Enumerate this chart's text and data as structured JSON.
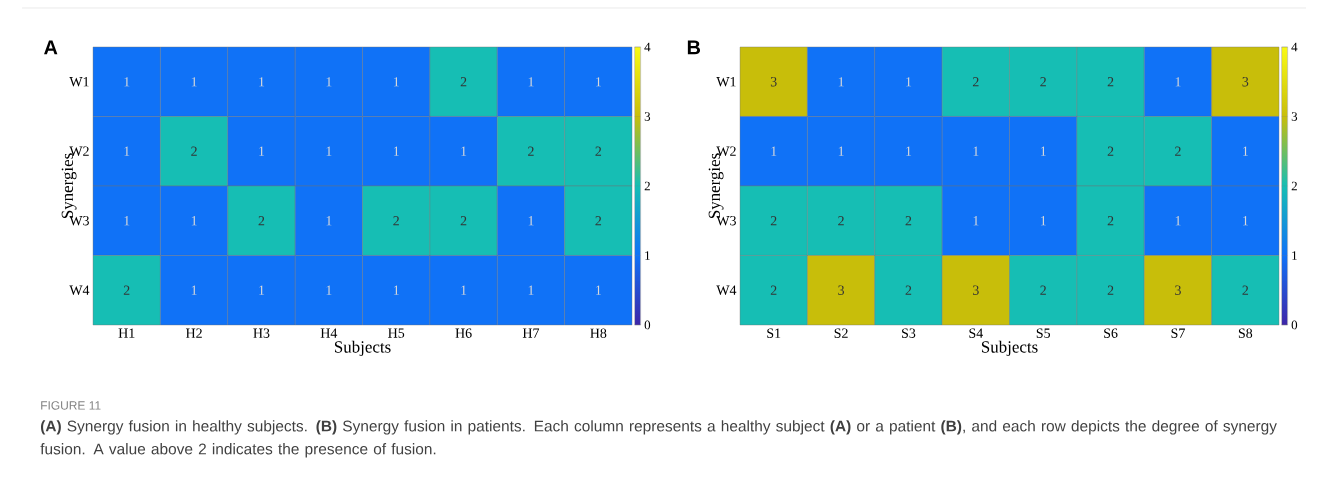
{
  "chart_data": [
    {
      "type": "heatmap",
      "title": "A",
      "xlabel": "Subjects",
      "ylabel": "Synergies",
      "categories": [
        "H1",
        "H2",
        "H3",
        "H4",
        "H5",
        "H6",
        "H7",
        "H8"
      ],
      "y_categories": [
        "W1",
        "W2",
        "W3",
        "W4"
      ],
      "cells": [
        [
          1,
          1,
          1,
          1,
          1,
          2,
          1,
          1
        ],
        [
          1,
          2,
          1,
          1,
          1,
          1,
          2,
          2
        ],
        [
          1,
          1,
          2,
          1,
          2,
          2,
          1,
          2
        ],
        [
          2,
          1,
          1,
          1,
          1,
          1,
          1,
          1
        ]
      ],
      "clim": [
        0,
        4
      ],
      "cticks": [
        0,
        1,
        2,
        3,
        4
      ],
      "data_labels": true,
      "annotations": [
        "FIGURE 11",
        "**(A)** Synergy fusion in healthy subjects. **(B)** Synergy fusion in patients. Each column represents a healthy subject **(A)** or a patient **(B)**, and each row depicts the degree of synergy fusion. A value above 2 indicates the presence of fusion."
      ]
    },
    {
      "type": "heatmap",
      "title": "B",
      "xlabel": "Subjects",
      "ylabel": "Synergies",
      "categories": [
        "S1",
        "S2",
        "S3",
        "S4",
        "S5",
        "S6",
        "S7",
        "S8"
      ],
      "y_categories": [
        "W1",
        "W2",
        "W3",
        "W4"
      ],
      "cells": [
        [
          3,
          1,
          1,
          2,
          2,
          2,
          1,
          3
        ],
        [
          1,
          1,
          1,
          1,
          1,
          2,
          2,
          1
        ],
        [
          2,
          2,
          2,
          1,
          1,
          2,
          1,
          1
        ],
        [
          2,
          3,
          2,
          3,
          2,
          2,
          3,
          2
        ]
      ],
      "clim": [
        0,
        4
      ],
      "cticks": [
        0,
        1,
        2,
        3,
        4
      ],
      "data_labels": true
    }
  ]
}
